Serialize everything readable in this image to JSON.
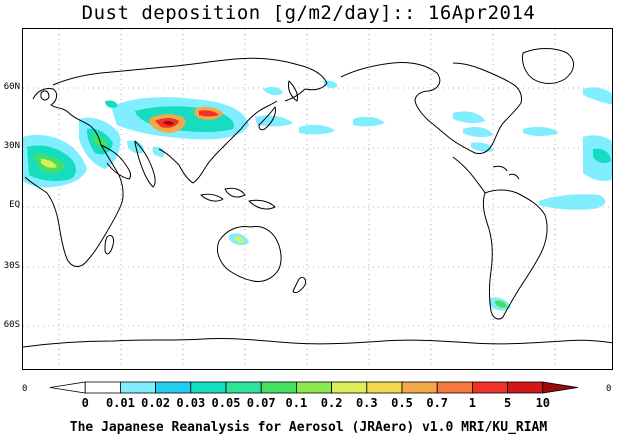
{
  "title": "Dust deposition [g/m2/day]:: 16Apr2014",
  "footer": "The Japanese Reanalysis for Aerosol (JRAero) v1.0 MRI/KU_RIAM",
  "lat_labels": [
    "60N",
    "30N",
    "EQ",
    "30S",
    "60S"
  ],
  "colorbar": {
    "left_edge_label": "0",
    "right_edge_label": "0",
    "levels": [
      "0",
      "0.01",
      "0.02",
      "0.03",
      "0.05",
      "0.07",
      "0.1",
      "0.2",
      "0.3",
      "0.5",
      "0.7",
      "1",
      "5",
      "10"
    ],
    "colors": [
      "#ffffff",
      "#ffffff",
      "#80eeff",
      "#20cff0",
      "#16dcc0",
      "#2ee39a",
      "#46e060",
      "#8ee850",
      "#dcef5a",
      "#f2d84c",
      "#f4a848",
      "#f37a3c",
      "#f0322a",
      "#d01818",
      "#9a0a0a"
    ]
  },
  "colors": {
    "coastline": "#000000",
    "grid": "#9a9a9a",
    "dust_low": "#80eeff",
    "dust_mid": "#16dcc0",
    "dust_high": "#f0322a",
    "dust_max": "#9a0a0a"
  }
}
